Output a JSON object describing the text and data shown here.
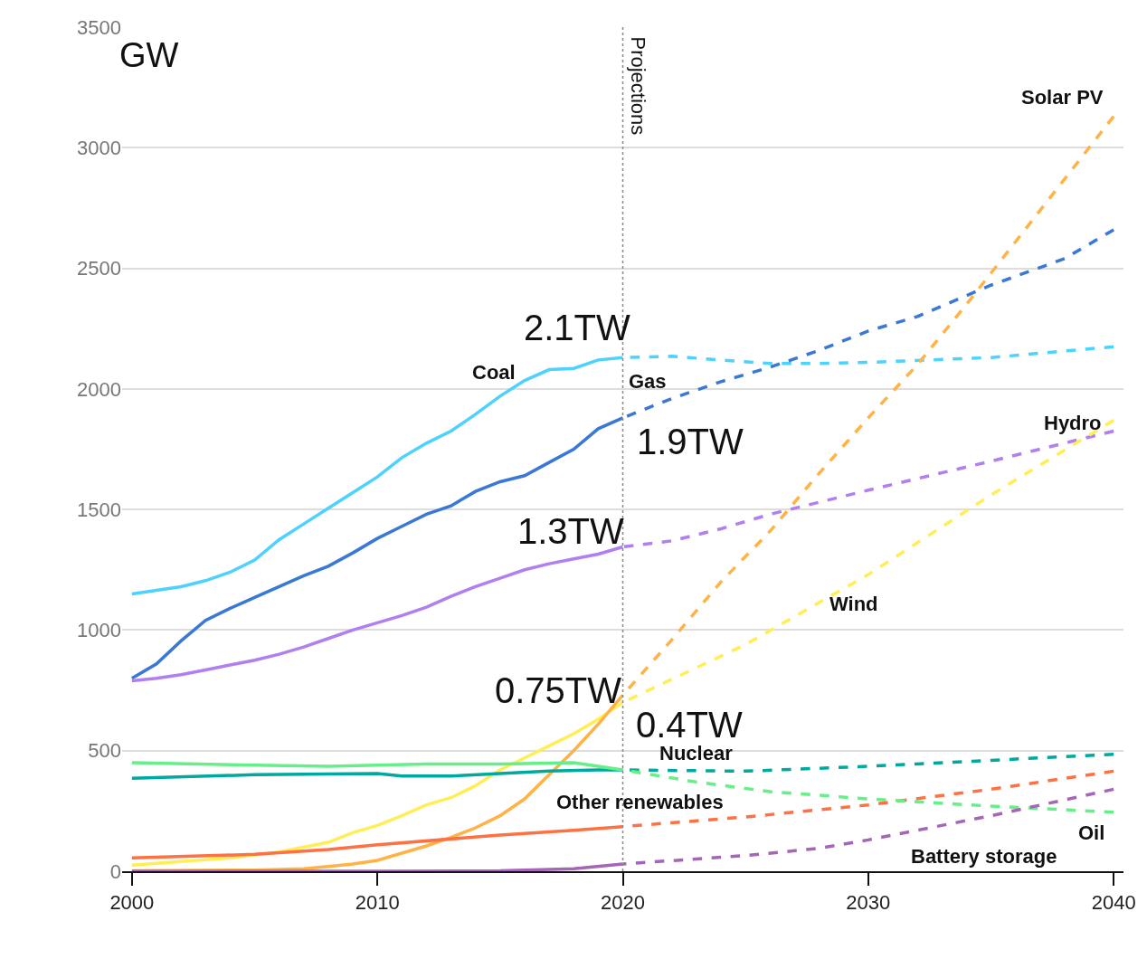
{
  "chart_data": {
    "type": "line",
    "ylabel": "GW",
    "xlim": [
      1999.6,
      2040.4
    ],
    "ylim": [
      0,
      3500
    ],
    "xticks": [
      2000,
      2010,
      2020,
      2030,
      2040
    ],
    "yticks": [
      0,
      500,
      1000,
      1500,
      2000,
      2500,
      3000,
      3500
    ],
    "grid": "y",
    "legend": false,
    "marker": "none",
    "series": [
      {
        "color": "#4dd2ff",
        "line_style": "solid",
        "name": "Coal",
        "x": [
          2000,
          2001,
          2002,
          2003,
          2004,
          2005,
          2006,
          2007,
          2008,
          2009,
          2010,
          2011,
          2012,
          2013,
          2014,
          2015,
          2016,
          2017,
          2018,
          2019,
          2020
        ],
        "values": [
          1150,
          1165,
          1180,
          1205,
          1240,
          1290,
          1375,
          1440,
          1505,
          1570,
          1635,
          1715,
          1775,
          1825,
          1895,
          1970,
          2035,
          2080,
          2085,
          2120,
          2130
        ]
      },
      {
        "color": "#4dd2ff",
        "line_style": "dashed",
        "x": [
          2020,
          2022,
          2024,
          2026,
          2028,
          2030,
          2035,
          2040
        ],
        "values": [
          2130,
          2135,
          2120,
          2105,
          2105,
          2110,
          2130,
          2175
        ]
      },
      {
        "color": "#3a78d8",
        "line_style": "solid",
        "x": [
          2000,
          2001,
          2002,
          2003,
          2004,
          2005,
          2006,
          2007,
          2008,
          2009,
          2010,
          2011,
          2012,
          2013,
          2014,
          2015,
          2016,
          2017,
          2018,
          2019,
          2020
        ],
        "values": [
          800,
          860,
          955,
          1040,
          1090,
          1135,
          1180,
          1225,
          1265,
          1320,
          1380,
          1430,
          1480,
          1515,
          1575,
          1615,
          1640,
          1695,
          1750,
          1835,
          1880
        ]
      },
      {
        "color": "#3a78d8",
        "line_style": "dashed",
        "name": "Gas",
        "x": [
          2020,
          2022,
          2024,
          2026,
          2028,
          2030,
          2032,
          2035,
          2038,
          2040
        ],
        "values": [
          1880,
          1960,
          2030,
          2090,
          2160,
          2240,
          2300,
          2430,
          2540,
          2660
        ]
      },
      {
        "color": "#b07ff0",
        "line_style": "solid",
        "x": [
          2000,
          2001,
          2002,
          2003,
          2004,
          2005,
          2006,
          2007,
          2008,
          2009,
          2010,
          2011,
          2012,
          2013,
          2014,
          2015,
          2016,
          2017,
          2018,
          2019,
          2020
        ],
        "values": [
          790,
          800,
          815,
          835,
          855,
          875,
          900,
          930,
          965,
          1000,
          1030,
          1060,
          1095,
          1140,
          1180,
          1215,
          1250,
          1275,
          1295,
          1315,
          1345
        ]
      },
      {
        "color": "#b07ff0",
        "line_style": "dashed",
        "name": "Hydro",
        "x": [
          2020,
          2022,
          2024,
          2026,
          2028,
          2030,
          2035,
          2040
        ],
        "values": [
          1345,
          1370,
          1420,
          1480,
          1530,
          1580,
          1700,
          1825
        ]
      },
      {
        "color": "#ffee55",
        "line_style": "solid",
        "x": [
          2000,
          2002,
          2004,
          2006,
          2008,
          2009,
          2010,
          2011,
          2012,
          2013,
          2014,
          2015,
          2016,
          2017,
          2018,
          2019,
          2020
        ],
        "values": [
          25,
          40,
          55,
          80,
          120,
          160,
          190,
          230,
          275,
          305,
          355,
          420,
          470,
          520,
          570,
          630,
          700
        ]
      },
      {
        "color": "#ffee55",
        "line_style": "dashed",
        "name": "Wind",
        "x": [
          2020,
          2025,
          2030,
          2035,
          2040
        ],
        "values": [
          700,
          940,
          1230,
          1560,
          1870
        ]
      },
      {
        "color": "#ffb347",
        "line_style": "solid",
        "x": [
          2000,
          2005,
          2007,
          2008,
          2009,
          2010,
          2011,
          2012,
          2013,
          2014,
          2015,
          2016,
          2017,
          2018,
          2019,
          2020
        ],
        "values": [
          2,
          5,
          10,
          20,
          30,
          45,
          75,
          105,
          140,
          180,
          230,
          300,
          400,
          500,
          610,
          730
        ]
      },
      {
        "color": "#ffb347",
        "line_style": "dashed",
        "name": "Solar PV",
        "x": [
          2020,
          2022,
          2024,
          2026,
          2028,
          2030,
          2032,
          2034,
          2036,
          2038,
          2040
        ],
        "values": [
          730,
          960,
          1200,
          1410,
          1650,
          1880,
          2100,
          2350,
          2610,
          2870,
          3130
        ]
      },
      {
        "color": "#00a99d",
        "line_style": "solid",
        "x": [
          2000,
          2005,
          2010,
          2011,
          2013,
          2015,
          2017,
          2019,
          2020
        ],
        "values": [
          385,
          400,
          405,
          395,
          395,
          405,
          415,
          420,
          420
        ]
      },
      {
        "color": "#00a99d",
        "line_style": "dashed",
        "name": "Nuclear",
        "x": [
          2020,
          2025,
          2030,
          2035,
          2040
        ],
        "values": [
          420,
          415,
          435,
          460,
          485
        ]
      },
      {
        "color": "#ff7043",
        "line_style": "solid",
        "x": [
          2000,
          2005,
          2008,
          2010,
          2015,
          2018,
          2020
        ],
        "values": [
          55,
          70,
          90,
          110,
          150,
          170,
          185
        ]
      },
      {
        "color": "#ff7043",
        "line_style": "dashed",
        "name": "Other renewables",
        "x": [
          2020,
          2025,
          2030,
          2035,
          2040
        ],
        "values": [
          185,
          225,
          275,
          340,
          415
        ]
      },
      {
        "color": "#66ee88",
        "line_style": "solid",
        "x": [
          2000,
          2005,
          2008,
          2012,
          2015,
          2018,
          2020
        ],
        "values": [
          450,
          440,
          435,
          445,
          445,
          450,
          420
        ]
      },
      {
        "color": "#66ee88",
        "line_style": "dashed",
        "name": "Oil",
        "x": [
          2020,
          2023,
          2026,
          2030,
          2035,
          2040
        ],
        "values": [
          420,
          370,
          330,
          300,
          270,
          245
        ]
      },
      {
        "color": "#a566b8",
        "line_style": "solid",
        "x": [
          2000,
          2010,
          2015,
          2018,
          2020
        ],
        "values": [
          0,
          0,
          2,
          10,
          30
        ]
      },
      {
        "color": "#a566b8",
        "line_style": "dashed",
        "name": "Battery storage",
        "x": [
          2020,
          2025,
          2028,
          2030,
          2035,
          2040
        ],
        "values": [
          30,
          65,
          95,
          130,
          230,
          340
        ]
      }
    ],
    "ref_lines": [
      {
        "axis": "x",
        "value": 2020,
        "label": "Projections",
        "color": "#888888",
        "line_style": "dotted"
      }
    ],
    "annotations": [
      "2.1TW",
      "1.9TW",
      "1.3TW",
      "0.75TW",
      "0.4TW"
    ]
  }
}
